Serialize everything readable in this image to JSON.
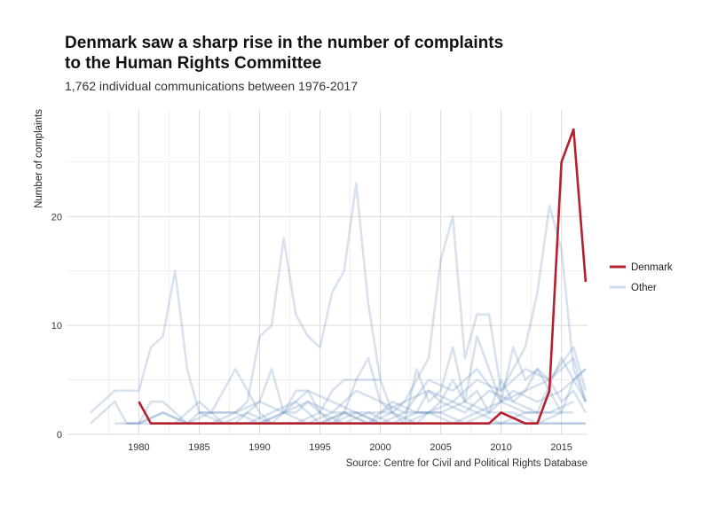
{
  "title_line1": "Denmark saw a sharp rise in the number of complaints",
  "title_line2": "to the Human Rights Committee",
  "subtitle": "1,762 individual communications between 1976-2017",
  "caption": "Source: Centre for Civil and Political Rights Database",
  "colors": {
    "denmark": "#b5202e",
    "other": "#5f8bbd",
    "grid": "#e6e6e6"
  },
  "chart_data": {
    "type": "line",
    "title": "Denmark saw a sharp rise in the number of complaints to the Human Rights Committee",
    "subtitle": "1,762 individual communications between 1976-2017",
    "xlabel": "",
    "ylabel": "Number of complaints",
    "xlim": [
      1976,
      2017
    ],
    "ylim": [
      0,
      28
    ],
    "x_ticks": [
      1980,
      1985,
      1990,
      1995,
      2000,
      2005,
      2010,
      2015
    ],
    "y_ticks": [
      0,
      10,
      20
    ],
    "grid": true,
    "legend": {
      "placement": "right",
      "entries": [
        "Denmark",
        "Other"
      ]
    },
    "series": [
      {
        "name": "Denmark",
        "group": "Denmark",
        "x": [
          1980,
          1981,
          1982,
          1983,
          1984,
          1985,
          1986,
          1987,
          1988,
          1989,
          1990,
          1991,
          1992,
          1993,
          1994,
          1995,
          1996,
          1997,
          1998,
          1999,
          2000,
          2001,
          2002,
          2003,
          2004,
          2005,
          2006,
          2007,
          2008,
          2009,
          2010,
          2011,
          2012,
          2013,
          2014,
          2015,
          2016,
          2017
        ],
        "y": [
          3,
          1,
          1,
          1,
          1,
          1,
          1,
          1,
          1,
          1,
          1,
          1,
          1,
          1,
          1,
          1,
          1,
          1,
          1,
          1,
          1,
          1,
          1,
          1,
          1,
          1,
          1,
          1,
          1,
          1,
          2,
          1.5,
          1,
          1,
          4,
          25,
          28,
          14
        ]
      },
      {
        "group": "Other",
        "x": [
          1976,
          1977,
          1978,
          1979,
          1980,
          1981,
          1982,
          1983,
          1984,
          1985,
          1986,
          1987,
          1988,
          1989,
          1990,
          1991,
          1992,
          1993,
          1994,
          1995,
          1996,
          1997,
          1998,
          1999,
          2000,
          2001
        ],
        "y": [
          2,
          3,
          4,
          4,
          4,
          8,
          9,
          15,
          6,
          2,
          2,
          2,
          2,
          3,
          9,
          10,
          18,
          11,
          9,
          8,
          13,
          15,
          23,
          12,
          5,
          2
        ]
      },
      {
        "group": "Other",
        "x": [
          2000,
          2001,
          2002,
          2003,
          2004,
          2005,
          2006,
          2007,
          2008,
          2009,
          2010,
          2011,
          2012,
          2013,
          2014,
          2015,
          2016,
          2017
        ],
        "y": [
          2,
          2,
          3,
          5,
          7,
          16,
          20,
          7,
          11,
          11,
          4,
          6,
          8,
          13,
          21,
          17,
          6,
          3
        ]
      },
      {
        "group": "Other",
        "x": [
          1976,
          1977,
          1978,
          1979,
          1980,
          1981,
          1982,
          1983,
          1984,
          1985,
          1986,
          1987,
          1988,
          1989,
          1990,
          1991,
          1992,
          1993,
          1994,
          1995,
          1996,
          1997,
          1998,
          1999,
          2000
        ],
        "y": [
          1,
          2,
          3,
          1,
          1,
          3,
          3,
          2,
          1,
          2,
          2,
          4,
          6,
          4,
          2,
          1,
          2,
          2,
          3,
          2,
          4,
          5,
          5,
          5,
          5
        ]
      },
      {
        "group": "Other",
        "x": [
          1983,
          1984,
          1985,
          1986,
          1987,
          1988,
          1989,
          1990,
          1991,
          1992,
          1993,
          1994,
          1995,
          1996,
          1997,
          1998,
          1999,
          2000,
          2001,
          2002,
          2003,
          2004,
          2005,
          2006,
          2007,
          2008,
          2009,
          2010,
          2011,
          2012,
          2013,
          2014,
          2015,
          2016,
          2017
        ],
        "y": [
          1,
          2,
          3,
          2,
          1,
          1,
          2,
          3,
          6,
          2,
          4,
          4,
          2,
          1,
          2,
          5,
          7,
          3,
          2,
          1,
          6,
          3,
          4,
          8,
          3,
          9,
          6,
          3,
          8,
          5,
          6,
          4,
          2,
          5,
          6
        ]
      },
      {
        "group": "Other",
        "x": [
          1980,
          1982,
          1984,
          1986,
          1988,
          1990,
          1992,
          1994,
          1996,
          1998,
          2000,
          2002,
          2004,
          2006,
          2008,
          2010,
          2012,
          2014,
          2016,
          2017
        ],
        "y": [
          1,
          2,
          1,
          2,
          2,
          3,
          2,
          3,
          2,
          4,
          3,
          2,
          5,
          4,
          6,
          3,
          4,
          5,
          8,
          4
        ]
      },
      {
        "group": "Other",
        "x": [
          1985,
          1987,
          1989,
          1991,
          1993,
          1995,
          1997,
          1999,
          2001,
          2003,
          2005,
          2007,
          2009,
          2011,
          2013,
          2015,
          2017
        ],
        "y": [
          2,
          1,
          1,
          2,
          3,
          1,
          2,
          1,
          3,
          2,
          2,
          3,
          2,
          4,
          3,
          4,
          6
        ]
      },
      {
        "group": "Other",
        "x": [
          1990,
          1992,
          1994,
          1996,
          1998,
          2000,
          2002,
          2004,
          2006,
          2008,
          2010,
          2012,
          2014,
          2016,
          2017
        ],
        "y": [
          1,
          2,
          4,
          3,
          2,
          2,
          3,
          4,
          3,
          5,
          4,
          6,
          5,
          7,
          3
        ]
      },
      {
        "group": "Other",
        "x": [
          1978,
          1980,
          1982,
          1984,
          1986,
          1988,
          1990,
          1992,
          1994,
          1996,
          1998,
          2000,
          2002,
          2004,
          2006,
          2008,
          2010,
          2012,
          2014,
          2016
        ],
        "y": [
          1,
          1,
          2,
          1,
          1,
          2,
          1,
          2,
          1,
          2,
          2,
          1,
          2,
          2,
          3,
          2,
          3,
          2,
          2,
          3
        ]
      },
      {
        "group": "Other",
        "x": [
          1995,
          1997,
          1999,
          2001,
          2003,
          2005,
          2007,
          2009,
          2011,
          2013,
          2015,
          2017
        ],
        "y": [
          1,
          2,
          1,
          2,
          1,
          3,
          2,
          4,
          3,
          2,
          7,
          3
        ]
      },
      {
        "group": "Other",
        "x": [
          1987,
          1989,
          1991,
          1993,
          1995,
          1997,
          1999,
          2001,
          2003,
          2005,
          2007,
          2009,
          2011,
          2013,
          2015
        ],
        "y": [
          1,
          2,
          1,
          1,
          2,
          1,
          2,
          1,
          2,
          2,
          1,
          2,
          2,
          1,
          2
        ]
      },
      {
        "group": "Other",
        "x": [
          2003,
          2004,
          2005,
          2006,
          2007,
          2008,
          2009,
          2010,
          2011,
          2012,
          2013,
          2014,
          2015,
          2016,
          2017
        ],
        "y": [
          2,
          4,
          3,
          5,
          3,
          4,
          2,
          5,
          3,
          4,
          6,
          5,
          3,
          4,
          2
        ]
      },
      {
        "group": "Other",
        "x": [
          1979,
          1983,
          1987,
          1991,
          1995,
          1999,
          2003,
          2007,
          2011,
          2015,
          2017
        ],
        "y": [
          1,
          1,
          1,
          1,
          1,
          1,
          1,
          1,
          1,
          1,
          1
        ]
      },
      {
        "group": "Other",
        "x": [
          1981,
          1985,
          1989,
          1993,
          1997,
          2001,
          2005,
          2009,
          2013,
          2017
        ],
        "y": [
          1,
          1,
          1,
          1,
          1,
          1,
          1,
          1,
          1,
          1
        ]
      },
      {
        "group": "Other",
        "x": [
          1992,
          1994,
          1996,
          1998,
          2000,
          2002,
          2004,
          2006,
          2008,
          2010,
          2012,
          2014,
          2016
        ],
        "y": [
          1,
          1,
          1,
          2,
          1,
          1,
          2,
          1,
          2,
          1,
          2,
          2,
          2
        ]
      }
    ]
  }
}
